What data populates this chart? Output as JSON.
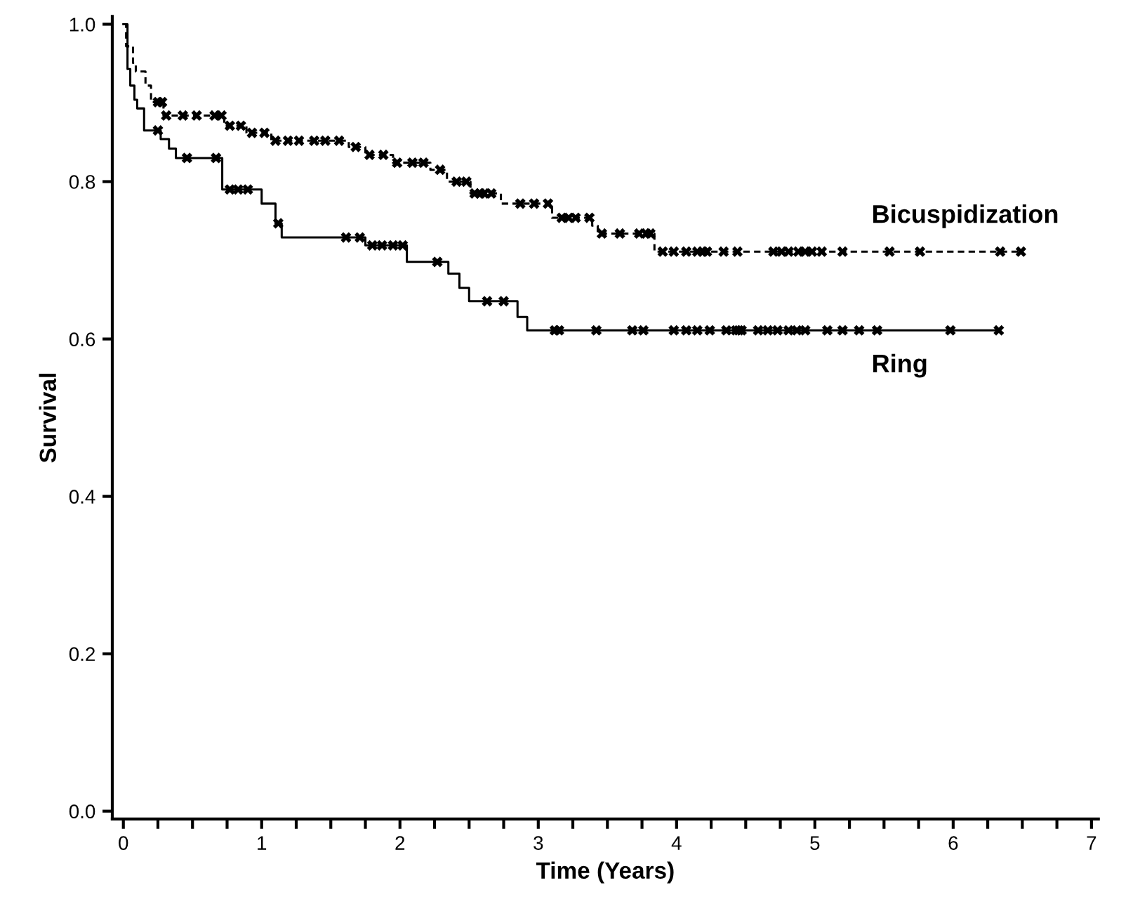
{
  "chart_data": {
    "type": "step",
    "xlabel": "Time (Years)",
    "ylabel": "Survival",
    "xlim": [
      -0.08,
      7.05
    ],
    "ylim": [
      -0.01,
      1.01
    ],
    "xticks": [
      0,
      {
        "value": 0.25,
        "label": null
      },
      {
        "value": 0.5,
        "label": null
      },
      {
        "value": 0.75,
        "label": null
      },
      1,
      {
        "value": 1.25,
        "label": null
      },
      {
        "value": 1.5,
        "label": null
      },
      {
        "value": 1.75,
        "label": null
      },
      2,
      {
        "value": 2.25,
        "label": null
      },
      {
        "value": 2.5,
        "label": null
      },
      {
        "value": 2.75,
        "label": null
      },
      3,
      {
        "value": 3.25,
        "label": null
      },
      {
        "value": 3.5,
        "label": null
      },
      {
        "value": 3.75,
        "label": null
      },
      4,
      {
        "value": 4.25,
        "label": null
      },
      {
        "value": 4.5,
        "label": null
      },
      {
        "value": 4.75,
        "label": null
      },
      5,
      {
        "value": 5.25,
        "label": null
      },
      {
        "value": 5.5,
        "label": null
      },
      {
        "value": 5.75,
        "label": null
      },
      6,
      {
        "value": 6.25,
        "label": null
      },
      {
        "value": 6.5,
        "label": null
      },
      {
        "value": 6.75,
        "label": null
      },
      7
    ],
    "yticks": [
      {
        "value": 0,
        "label": "0.0"
      },
      {
        "value": 0.2,
        "label": "0.2"
      },
      {
        "value": 0.4,
        "label": "0.4"
      },
      {
        "value": 0.6,
        "label": "0.6"
      },
      {
        "value": 0.8,
        "label": "0.8"
      },
      {
        "value": 1.0,
        "label": "1.0"
      }
    ],
    "grid": false,
    "legend": false,
    "series": [
      {
        "name": "Bicuspidization",
        "color": "#000000",
        "line_style": "dashed",
        "marker": "none",
        "x": [
          0,
          0.02,
          0.07,
          0.09,
          0.16,
          0.2,
          0.29,
          0.73,
          0.89,
          1.07,
          1.63,
          1.75,
          1.95,
          2.22,
          2.34,
          2.51,
          2.73,
          3.1,
          3.39,
          3.43,
          3.84,
          6.49
        ],
        "values": [
          1.0,
          0.972,
          0.951,
          0.94,
          0.922,
          0.901,
          0.884,
          0.871,
          0.862,
          0.852,
          0.844,
          0.834,
          0.824,
          0.815,
          0.8,
          0.785,
          0.772,
          0.754,
          0.744,
          0.734,
          0.711,
          0.711
        ]
      },
      {
        "name": "Ring",
        "color": "#000000",
        "line_style": "solid",
        "marker": "none",
        "x": [
          0,
          0.03,
          0.05,
          0.08,
          0.1,
          0.15,
          0.27,
          0.33,
          0.38,
          0.715,
          1.0,
          1.1,
          1.145,
          1.75,
          2.05,
          2.35,
          2.43,
          2.5,
          2.85,
          2.92,
          6.33
        ],
        "values": [
          1.0,
          0.943,
          0.922,
          0.904,
          0.893,
          0.865,
          0.854,
          0.842,
          0.83,
          0.79,
          0.772,
          0.747,
          0.729,
          0.719,
          0.698,
          0.683,
          0.665,
          0.648,
          0.628,
          0.611,
          0.611
        ]
      },
      {
        "type": "scatter",
        "color": "#000000",
        "marker": "cross",
        "x": [
          0.25,
          0.28,
          0.31,
          0.43,
          0.53,
          0.66,
          0.71,
          0.77,
          0.85,
          0.93,
          1.02,
          1.1,
          1.19,
          1.27,
          1.38,
          1.46,
          1.56,
          1.68,
          1.78,
          1.88,
          1.98,
          2.09,
          2.17,
          2.29,
          2.41,
          2.48,
          2.54,
          2.58,
          2.61,
          2.66,
          2.87,
          2.97,
          3.07,
          3.17,
          3.22,
          3.27,
          3.37,
          3.46,
          3.59,
          3.73,
          3.78,
          3.81,
          3.9,
          3.98,
          4.07,
          4.15,
          4.19,
          4.22,
          4.34,
          4.44,
          4.7,
          4.76,
          4.81,
          4.88,
          4.93,
          4.98,
          5.05,
          5.2,
          5.54,
          5.76,
          6.34,
          6.49
        ],
        "values": [
          0.901,
          0.901,
          0.884,
          0.884,
          0.884,
          0.884,
          0.884,
          0.871,
          0.871,
          0.862,
          0.862,
          0.852,
          0.852,
          0.852,
          0.852,
          0.852,
          0.852,
          0.844,
          0.834,
          0.834,
          0.824,
          0.824,
          0.824,
          0.815,
          0.8,
          0.8,
          0.785,
          0.785,
          0.785,
          0.785,
          0.772,
          0.772,
          0.772,
          0.754,
          0.754,
          0.754,
          0.754,
          0.734,
          0.734,
          0.734,
          0.734,
          0.734,
          0.711,
          0.711,
          0.711,
          0.711,
          0.711,
          0.711,
          0.711,
          0.711,
          0.711,
          0.711,
          0.711,
          0.711,
          0.711,
          0.711,
          0.711,
          0.711,
          0.711,
          0.711,
          0.711,
          0.711
        ]
      },
      {
        "type": "scatter",
        "color": "#000000",
        "marker": "cross",
        "x": [
          0.25,
          0.46,
          0.67,
          0.77,
          0.83,
          0.9,
          1.12,
          1.61,
          1.71,
          1.8,
          1.87,
          1.95,
          2.02,
          2.27,
          2.63,
          2.75,
          3.12,
          3.15,
          3.42,
          3.68,
          3.76,
          3.98,
          4.07,
          4.15,
          4.24,
          4.36,
          4.43,
          4.45,
          4.47,
          4.59,
          4.66,
          4.73,
          4.81,
          4.87,
          4.93,
          5.09,
          5.2,
          5.32,
          5.45,
          5.98,
          6.33
        ],
        "values": [
          0.865,
          0.83,
          0.83,
          0.79,
          0.79,
          0.79,
          0.747,
          0.729,
          0.729,
          0.719,
          0.719,
          0.719,
          0.719,
          0.698,
          0.648,
          0.648,
          0.611,
          0.611,
          0.611,
          0.611,
          0.611,
          0.611,
          0.611,
          0.611,
          0.611,
          0.611,
          0.611,
          0.611,
          0.611,
          0.611,
          0.611,
          0.611,
          0.611,
          0.611,
          0.611,
          0.611,
          0.611,
          0.611,
          0.611,
          0.611,
          0.611
        ]
      }
    ]
  }
}
